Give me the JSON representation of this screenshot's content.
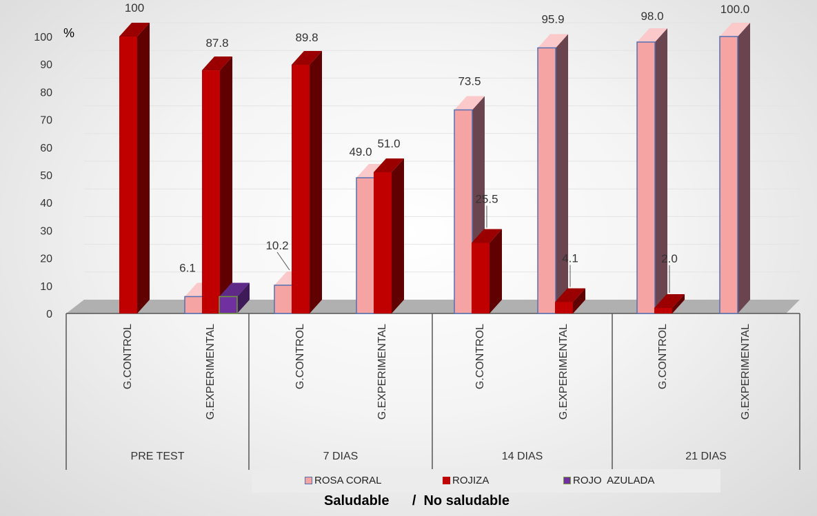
{
  "chart_data": {
    "type": "bar",
    "ylabel": "%",
    "ylim": [
      0,
      100
    ],
    "yticks": [
      0,
      10,
      20,
      30,
      40,
      50,
      60,
      70,
      80,
      90,
      100
    ],
    "groups": [
      {
        "label": "PRE TEST",
        "categories": [
          "G.CONTROL",
          "G.EXPERIMENTAL"
        ]
      },
      {
        "label": "7 DIAS",
        "categories": [
          "G.CONTROL",
          "G.EXPERIMENTAL"
        ]
      },
      {
        "label": "14 DIAS",
        "categories": [
          "G.CONTROL",
          "G.EXPERIMENTAL"
        ]
      },
      {
        "label": "21 DIAS",
        "categories": [
          "G.CONTROL",
          "G.EXPERIMENTAL"
        ]
      }
    ],
    "series": [
      {
        "name": "ROSA CORAL",
        "color": "#f6a3a3",
        "values": [
          0,
          6.1,
          10.2,
          49.0,
          73.5,
          95.9,
          98.0,
          100.0
        ],
        "labels": [
          "",
          "6.1",
          "10.2",
          "49.0",
          "73.5",
          "95.9",
          "98.0",
          "100.0"
        ]
      },
      {
        "name": "ROJIZA",
        "color": "#c00000",
        "values": [
          100,
          87.8,
          89.8,
          51.0,
          25.5,
          4.1,
          2.0,
          0
        ],
        "labels": [
          "100",
          "87.8",
          "89.8",
          "51.0",
          "25.5",
          "4.1",
          "2.0",
          ""
        ]
      },
      {
        "name": "ROJO  AZULADA",
        "color": "#7030a0",
        "values": [
          0,
          6.1,
          0,
          0,
          0,
          0,
          0,
          0
        ],
        "labels": [
          "",
          "",
          "",
          "",
          "",
          "",
          "",
          ""
        ]
      }
    ],
    "legend_position": "bottom",
    "caption": "Saludable      /  No saludable"
  }
}
